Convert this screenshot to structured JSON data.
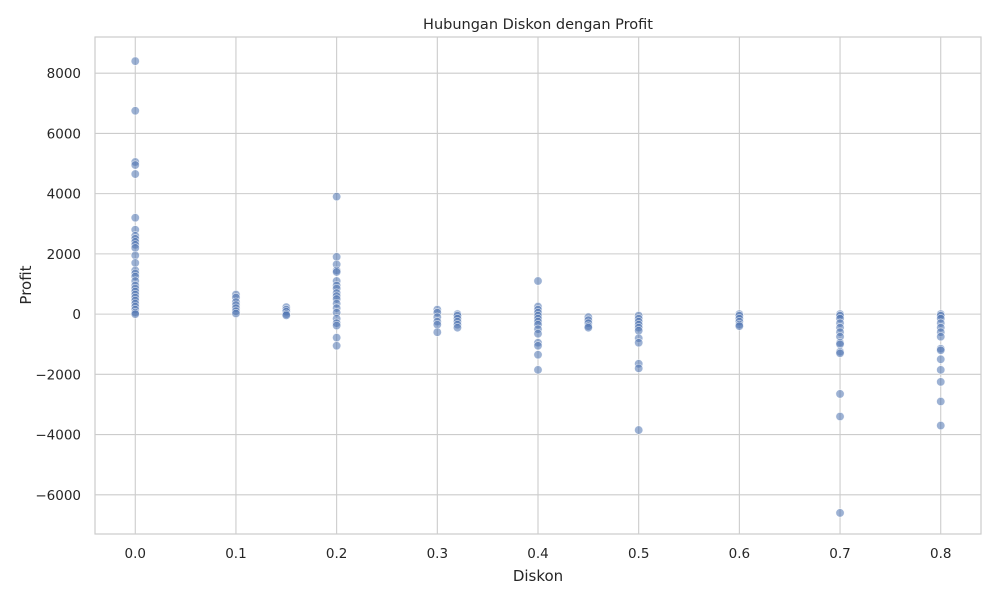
{
  "chart_data": {
    "type": "scatter",
    "title": "Hubungan Diskon dengan Profit",
    "xlabel": "Diskon",
    "ylabel": "Profit",
    "xlim": [
      -0.04,
      0.84
    ],
    "ylim": [
      -7300,
      9200
    ],
    "xticks": [
      0.0,
      0.1,
      0.2,
      0.3,
      0.4,
      0.5,
      0.6,
      0.7,
      0.8
    ],
    "xtick_labels": [
      "0.0",
      "0.1",
      "0.2",
      "0.3",
      "0.4",
      "0.5",
      "0.6",
      "0.7",
      "0.8"
    ],
    "yticks": [
      -6000,
      -4000,
      -2000,
      0,
      2000,
      4000,
      6000,
      8000
    ],
    "ytick_labels": [
      "−6000",
      "−4000",
      "−2000",
      "0",
      "2000",
      "4000",
      "6000",
      "8000"
    ],
    "grid": true,
    "colors": {
      "points": "#4c72b0",
      "grid": "#cccccc",
      "text": "#262626"
    },
    "points": [
      {
        "x": 0.0,
        "y": 8400
      },
      {
        "x": 0.0,
        "y": 6750
      },
      {
        "x": 0.0,
        "y": 5050
      },
      {
        "x": 0.0,
        "y": 4950
      },
      {
        "x": 0.0,
        "y": 4650
      },
      {
        "x": 0.0,
        "y": 3200
      },
      {
        "x": 0.0,
        "y": 2800
      },
      {
        "x": 0.0,
        "y": 2600
      },
      {
        "x": 0.0,
        "y": 2500
      },
      {
        "x": 0.0,
        "y": 2400
      },
      {
        "x": 0.0,
        "y": 2300
      },
      {
        "x": 0.0,
        "y": 2200
      },
      {
        "x": 0.0,
        "y": 1950
      },
      {
        "x": 0.0,
        "y": 1700
      },
      {
        "x": 0.0,
        "y": 1450
      },
      {
        "x": 0.0,
        "y": 1350
      },
      {
        "x": 0.0,
        "y": 1250
      },
      {
        "x": 0.0,
        "y": 1100
      },
      {
        "x": 0.0,
        "y": 950
      },
      {
        "x": 0.0,
        "y": 850
      },
      {
        "x": 0.0,
        "y": 750
      },
      {
        "x": 0.0,
        "y": 650
      },
      {
        "x": 0.0,
        "y": 550
      },
      {
        "x": 0.0,
        "y": 450
      },
      {
        "x": 0.0,
        "y": 350
      },
      {
        "x": 0.0,
        "y": 250
      },
      {
        "x": 0.0,
        "y": 150
      },
      {
        "x": 0.0,
        "y": 50
      },
      {
        "x": 0.0,
        "y": 0
      },
      {
        "x": 0.1,
        "y": 650
      },
      {
        "x": 0.1,
        "y": 550
      },
      {
        "x": 0.1,
        "y": 400
      },
      {
        "x": 0.1,
        "y": 300
      },
      {
        "x": 0.1,
        "y": 200
      },
      {
        "x": 0.1,
        "y": 100
      },
      {
        "x": 0.1,
        "y": 20
      },
      {
        "x": 0.15,
        "y": 230
      },
      {
        "x": 0.15,
        "y": 150
      },
      {
        "x": 0.15,
        "y": 80
      },
      {
        "x": 0.15,
        "y": 0
      },
      {
        "x": 0.15,
        "y": -40
      },
      {
        "x": 0.2,
        "y": 3900
      },
      {
        "x": 0.2,
        "y": 1900
      },
      {
        "x": 0.2,
        "y": 1650
      },
      {
        "x": 0.2,
        "y": 1450
      },
      {
        "x": 0.2,
        "y": 1400
      },
      {
        "x": 0.2,
        "y": 1100
      },
      {
        "x": 0.2,
        "y": 950
      },
      {
        "x": 0.2,
        "y": 850
      },
      {
        "x": 0.2,
        "y": 700
      },
      {
        "x": 0.2,
        "y": 600
      },
      {
        "x": 0.2,
        "y": 500
      },
      {
        "x": 0.2,
        "y": 350
      },
      {
        "x": 0.2,
        "y": 200
      },
      {
        "x": 0.2,
        "y": 50
      },
      {
        "x": 0.2,
        "y": -150
      },
      {
        "x": 0.2,
        "y": -300
      },
      {
        "x": 0.2,
        "y": -380
      },
      {
        "x": 0.2,
        "y": -780
      },
      {
        "x": 0.2,
        "y": -1050
      },
      {
        "x": 0.3,
        "y": 150
      },
      {
        "x": 0.3,
        "y": 50
      },
      {
        "x": 0.3,
        "y": -100
      },
      {
        "x": 0.3,
        "y": -250
      },
      {
        "x": 0.3,
        "y": -350
      },
      {
        "x": 0.3,
        "y": -600
      },
      {
        "x": 0.32,
        "y": 0
      },
      {
        "x": 0.32,
        "y": -50
      },
      {
        "x": 0.32,
        "y": -150
      },
      {
        "x": 0.32,
        "y": -250
      },
      {
        "x": 0.32,
        "y": -350
      },
      {
        "x": 0.32,
        "y": -450
      },
      {
        "x": 0.4,
        "y": 1100
      },
      {
        "x": 0.4,
        "y": 250
      },
      {
        "x": 0.4,
        "y": 150
      },
      {
        "x": 0.4,
        "y": 50
      },
      {
        "x": 0.4,
        "y": -50
      },
      {
        "x": 0.4,
        "y": -150
      },
      {
        "x": 0.4,
        "y": -250
      },
      {
        "x": 0.4,
        "y": -350
      },
      {
        "x": 0.4,
        "y": -500
      },
      {
        "x": 0.4,
        "y": -650
      },
      {
        "x": 0.4,
        "y": -950
      },
      {
        "x": 0.4,
        "y": -1050
      },
      {
        "x": 0.4,
        "y": -1350
      },
      {
        "x": 0.4,
        "y": -1850
      },
      {
        "x": 0.45,
        "y": -100
      },
      {
        "x": 0.45,
        "y": -200
      },
      {
        "x": 0.45,
        "y": -300
      },
      {
        "x": 0.45,
        "y": -400
      },
      {
        "x": 0.45,
        "y": -450
      },
      {
        "x": 0.5,
        "y": -50
      },
      {
        "x": 0.5,
        "y": -150
      },
      {
        "x": 0.5,
        "y": -250
      },
      {
        "x": 0.5,
        "y": -350
      },
      {
        "x": 0.5,
        "y": -450
      },
      {
        "x": 0.5,
        "y": -550
      },
      {
        "x": 0.5,
        "y": -800
      },
      {
        "x": 0.5,
        "y": -950
      },
      {
        "x": 0.5,
        "y": -1650
      },
      {
        "x": 0.5,
        "y": -1800
      },
      {
        "x": 0.5,
        "y": -3850
      },
      {
        "x": 0.6,
        "y": 0
      },
      {
        "x": 0.6,
        "y": -50
      },
      {
        "x": 0.6,
        "y": -150
      },
      {
        "x": 0.6,
        "y": -250
      },
      {
        "x": 0.6,
        "y": -350
      },
      {
        "x": 0.6,
        "y": -400
      },
      {
        "x": 0.7,
        "y": 0
      },
      {
        "x": 0.7,
        "y": -50
      },
      {
        "x": 0.7,
        "y": -150
      },
      {
        "x": 0.7,
        "y": -300
      },
      {
        "x": 0.7,
        "y": -450
      },
      {
        "x": 0.7,
        "y": -600
      },
      {
        "x": 0.7,
        "y": -750
      },
      {
        "x": 0.7,
        "y": -950
      },
      {
        "x": 0.7,
        "y": -1000
      },
      {
        "x": 0.7,
        "y": -1250
      },
      {
        "x": 0.7,
        "y": -1300
      },
      {
        "x": 0.7,
        "y": -2650
      },
      {
        "x": 0.7,
        "y": -3400
      },
      {
        "x": 0.7,
        "y": -6600
      },
      {
        "x": 0.8,
        "y": 0
      },
      {
        "x": 0.8,
        "y": -50
      },
      {
        "x": 0.8,
        "y": -150
      },
      {
        "x": 0.8,
        "y": -300
      },
      {
        "x": 0.8,
        "y": -450
      },
      {
        "x": 0.8,
        "y": -600
      },
      {
        "x": 0.8,
        "y": -750
      },
      {
        "x": 0.8,
        "y": -1150
      },
      {
        "x": 0.8,
        "y": -1200
      },
      {
        "x": 0.8,
        "y": -1500
      },
      {
        "x": 0.8,
        "y": -1850
      },
      {
        "x": 0.8,
        "y": -2250
      },
      {
        "x": 0.8,
        "y": -2900
      },
      {
        "x": 0.8,
        "y": -3700
      }
    ]
  }
}
